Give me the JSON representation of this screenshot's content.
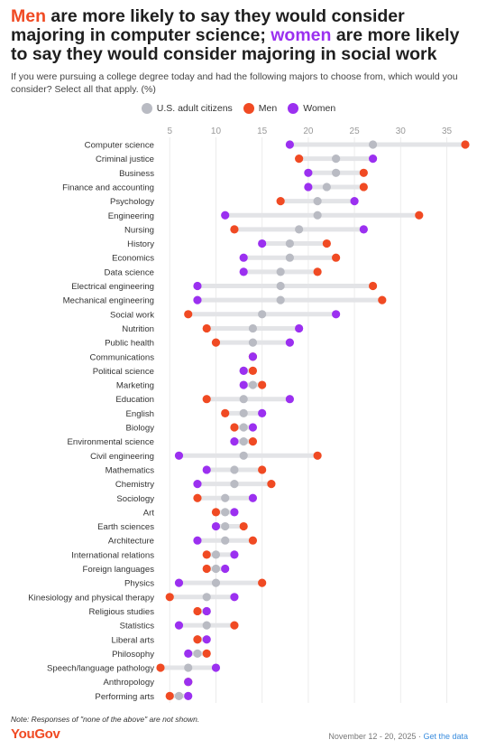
{
  "header": {
    "title_part1": "Men",
    "title_part2": " are more likely to say they would consider majoring in computer science; ",
    "title_part3": "women",
    "title_part4": " are more likely to say they would consider majoring in social work",
    "subtitle": "If you were pursuing a college degree today and had the following majors to choose from, which would you consider? Select all that apply. (%)"
  },
  "legend": {
    "items": [
      {
        "label": "U.S. adult citizens",
        "color": "#b9bbc3"
      },
      {
        "label": "Men",
        "color": "#f04a23"
      },
      {
        "label": "Women",
        "color": "#9b30f0"
      }
    ]
  },
  "footer": {
    "note": "Note: Responses of \"none of the above\" are not shown.",
    "logo": "YouGov",
    "dates": "November 12 - 20, 2025",
    "separator": "·",
    "link": "Get the data"
  },
  "chart_data": {
    "type": "scatter",
    "xlim": [
      4,
      37
    ],
    "x_ticks": [
      5,
      10,
      15,
      20,
      25,
      30,
      35
    ],
    "grid": true,
    "legend_position": "top",
    "colors": {
      "all": "#b9bbc3",
      "men": "#f04a23",
      "women": "#9b30f0",
      "range": "#e3e4e7"
    },
    "series": [
      {
        "name": "U.S. adult citizens",
        "key": "all"
      },
      {
        "name": "Men",
        "key": "men"
      },
      {
        "name": "Women",
        "key": "women"
      }
    ],
    "categories": [
      {
        "label": "Computer science",
        "all": 27,
        "men": 37,
        "women": 18
      },
      {
        "label": "Criminal justice",
        "all": 23,
        "men": 19,
        "women": 27
      },
      {
        "label": "Business",
        "all": 23,
        "men": 26,
        "women": 20
      },
      {
        "label": "Finance and accounting",
        "all": 22,
        "men": 26,
        "women": 20
      },
      {
        "label": "Psychology",
        "all": 21,
        "men": 17,
        "women": 25
      },
      {
        "label": "Engineering",
        "all": 21,
        "men": 32,
        "women": 11
      },
      {
        "label": "Nursing",
        "all": 19,
        "men": 12,
        "women": 26
      },
      {
        "label": "History",
        "all": 18,
        "men": 22,
        "women": 15
      },
      {
        "label": "Economics",
        "all": 18,
        "men": 23,
        "women": 13
      },
      {
        "label": "Data science",
        "all": 17,
        "men": 21,
        "women": 13
      },
      {
        "label": "Electrical engineering",
        "all": 17,
        "men": 27,
        "women": 8
      },
      {
        "label": "Mechanical engineering",
        "all": 17,
        "men": 28,
        "women": 8
      },
      {
        "label": "Social work",
        "all": 15,
        "men": 7,
        "women": 23
      },
      {
        "label": "Nutrition",
        "all": 14,
        "men": 9,
        "women": 19
      },
      {
        "label": "Public health",
        "all": 14,
        "men": 10,
        "women": 18
      },
      {
        "label": "Communications",
        "all": 14,
        "men": 14,
        "women": 14
      },
      {
        "label": "Political science",
        "all": 13,
        "men": 14,
        "women": 13
      },
      {
        "label": "Marketing",
        "all": 14,
        "men": 15,
        "women": 13
      },
      {
        "label": "Education",
        "all": 13,
        "men": 9,
        "women": 18
      },
      {
        "label": "English",
        "all": 13,
        "men": 11,
        "women": 15
      },
      {
        "label": "Biology",
        "all": 13,
        "men": 12,
        "women": 14
      },
      {
        "label": "Environmental science",
        "all": 13,
        "men": 14,
        "women": 12
      },
      {
        "label": "Civil engineering",
        "all": 13,
        "men": 21,
        "women": 6
      },
      {
        "label": "Mathematics",
        "all": 12,
        "men": 15,
        "women": 9
      },
      {
        "label": "Chemistry",
        "all": 12,
        "men": 16,
        "women": 8
      },
      {
        "label": "Sociology",
        "all": 11,
        "men": 8,
        "women": 14
      },
      {
        "label": "Art",
        "all": 11,
        "men": 10,
        "women": 12
      },
      {
        "label": "Earth sciences",
        "all": 11,
        "men": 13,
        "women": 10
      },
      {
        "label": "Architecture",
        "all": 11,
        "men": 14,
        "women": 8
      },
      {
        "label": "International relations",
        "all": 10,
        "men": 9,
        "women": 12
      },
      {
        "label": "Foreign languages",
        "all": 10,
        "men": 9,
        "women": 11
      },
      {
        "label": "Physics",
        "all": 10,
        "men": 15,
        "women": 6
      },
      {
        "label": "Kinesiology and physical therapy",
        "all": 9,
        "men": 5,
        "women": 12
      },
      {
        "label": "Religious studies",
        "all": 9,
        "men": 8,
        "women": 9
      },
      {
        "label": "Statistics",
        "all": 9,
        "men": 12,
        "women": 6
      },
      {
        "label": "Liberal arts",
        "all": 8,
        "men": 8,
        "women": 9
      },
      {
        "label": "Philosophy",
        "all": 8,
        "men": 9,
        "women": 7
      },
      {
        "label": "Speech/language pathology",
        "all": 7,
        "men": 4,
        "women": 10
      },
      {
        "label": "Anthropology",
        "all": 7,
        "men": 7,
        "women": 7
      },
      {
        "label": "Performing arts",
        "all": 6,
        "men": 5,
        "women": 7
      }
    ]
  }
}
